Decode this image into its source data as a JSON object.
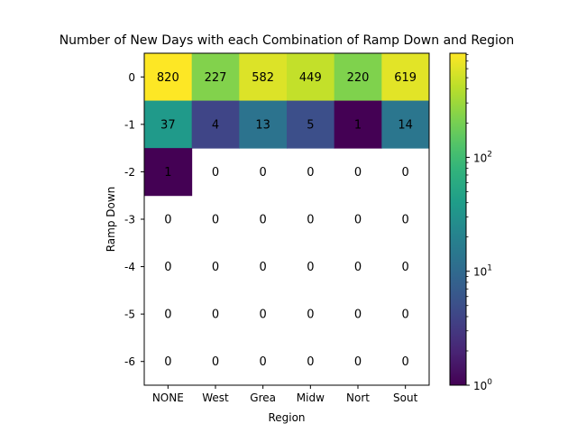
{
  "chart_data": {
    "type": "heatmap",
    "title": "Number of New Days with each Combination of Ramp Down and Region",
    "xlabel": "Region",
    "ylabel": "Ramp Down",
    "x_categories": [
      "NONE",
      "West",
      "Grea",
      "Midw",
      "Nort",
      "Sout"
    ],
    "y_categories": [
      "0",
      "-1",
      "-2",
      "-3",
      "-4",
      "-5",
      "-6"
    ],
    "values": [
      [
        820,
        227,
        582,
        449,
        220,
        619
      ],
      [
        37,
        4,
        13,
        5,
        1,
        14
      ],
      [
        1,
        0,
        0,
        0,
        0,
        0
      ],
      [
        0,
        0,
        0,
        0,
        0,
        0
      ],
      [
        0,
        0,
        0,
        0,
        0,
        0
      ],
      [
        0,
        0,
        0,
        0,
        0,
        0
      ],
      [
        0,
        0,
        0,
        0,
        0,
        0
      ]
    ],
    "colormap": "viridis",
    "color_scale": "log",
    "color_range": [
      1,
      820
    ],
    "zero_cells": "blank",
    "colorbar": {
      "ticks": [
        1,
        10,
        100
      ],
      "tick_labels": [
        "10^0",
        "10^1",
        "10^2"
      ]
    },
    "grid": false
  }
}
